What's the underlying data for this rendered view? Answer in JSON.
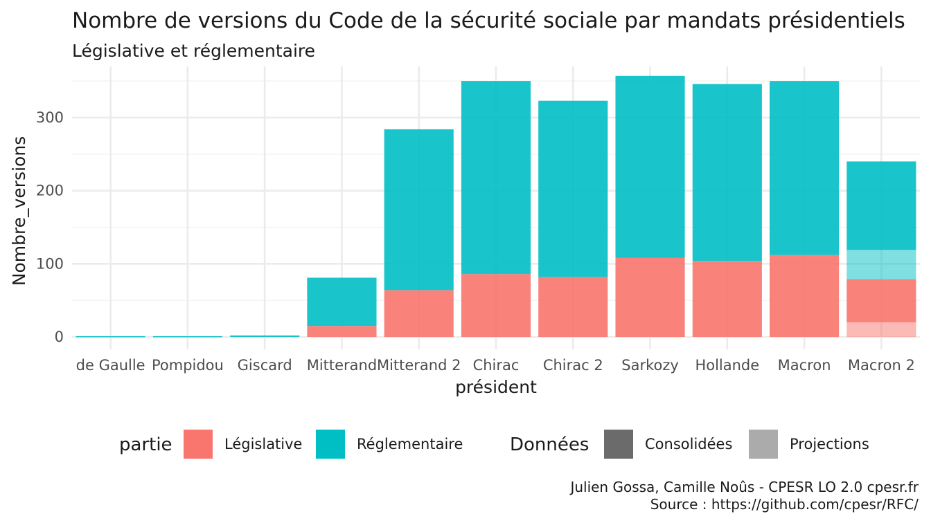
{
  "chart_data": {
    "type": "bar",
    "stacked": true,
    "title": "Nombre de versions du Code de la sécurité sociale par mandats présidentiels",
    "subtitle": "Législative et réglementaire",
    "xlabel": "président",
    "ylabel": "Nombre_versions",
    "categories": [
      "de Gaulle",
      "Pompidou",
      "Giscard",
      "Mitterand",
      "Mitterand 2",
      "Chirac",
      "Chirac 2",
      "Sarkozy",
      "Hollande",
      "Macron",
      "Macron 2"
    ],
    "yticks": [
      0,
      100,
      200,
      300
    ],
    "ylim": [
      -17,
      370
    ],
    "grid": true,
    "series": [
      {
        "name": "Législative",
        "data": "Consolidées",
        "color": "#F8766D",
        "values": [
          0,
          0,
          0,
          15,
          64,
          86,
          82,
          108,
          104,
          112,
          59
        ]
      },
      {
        "name": "Réglementaire",
        "data": "Consolidées",
        "color": "#00BFC4",
        "values": [
          1,
          1,
          2,
          66,
          220,
          264,
          241,
          249,
          242,
          238,
          121
        ]
      },
      {
        "name": "Législative",
        "data": "Projections",
        "color": "#F8766D",
        "values": [
          0,
          0,
          0,
          0,
          0,
          0,
          0,
          0,
          0,
          0,
          20
        ]
      },
      {
        "name": "Réglementaire",
        "data": "Projections",
        "color": "#00BFC4",
        "values": [
          0,
          0,
          0,
          0,
          0,
          0,
          0,
          0,
          0,
          0,
          40
        ]
      }
    ],
    "legend": {
      "position": "bottom",
      "fill_title": "partie",
      "fill_items": [
        {
          "label": "Législative",
          "color": "#F8766D"
        },
        {
          "label": "Réglementaire",
          "color": "#00BFC4"
        }
      ],
      "alpha_title": "Données",
      "alpha_items": [
        {
          "label": "Consolidées",
          "color": "#6b6b6b"
        },
        {
          "label": "Projections",
          "color": "#ababab"
        }
      ]
    },
    "caption": [
      "Julien Gossa, Camille Noûs - CPESR LO 2.0 cpesr.fr",
      "Source : https://github.com/cpesr/RFC/"
    ]
  }
}
